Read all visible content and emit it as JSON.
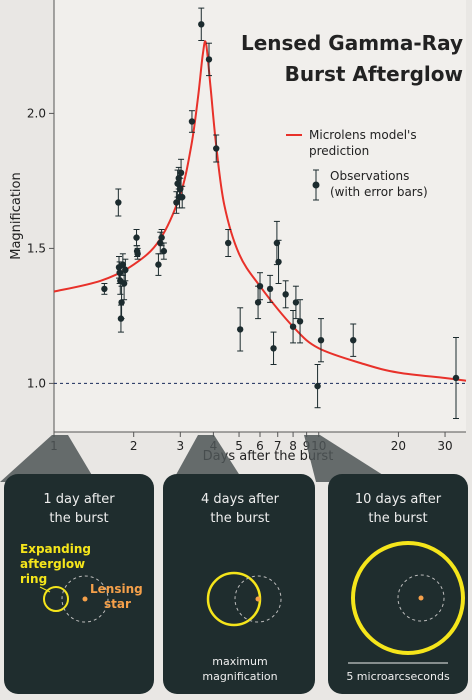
{
  "chart_data": {
    "type": "scatter",
    "title_line1": "Lensed Gamma-Ray",
    "title_line2": "Burst Afterglow",
    "xlabel": "Days after the burst",
    "ylabel": "Magnification",
    "x_scale": "log",
    "xlim": [
      1,
      36
    ],
    "ylim": [
      0.82,
      2.42
    ],
    "x_ticks": [
      1,
      2,
      3,
      4,
      5,
      6,
      7,
      8,
      9,
      10,
      20,
      30
    ],
    "x_tick_labels": [
      "1",
      "2",
      "3",
      "4",
      "5",
      "6",
      "7",
      "8",
      "9",
      "10",
      "20",
      "30"
    ],
    "y_ticks": [
      1.0,
      1.5,
      2.0
    ],
    "y_tick_labels": [
      "1.0",
      "1.5",
      "2.0"
    ],
    "baseline": 1.0,
    "colors": {
      "model": "#e8312a",
      "points": "#1c2b2e",
      "panel": "#1f2d2e",
      "ring": "#f5e51b",
      "star": "#f5a04a"
    },
    "legend": {
      "position": "top-right",
      "model_label_line1": "Microlens model's",
      "model_label_line2": "prediction",
      "obs_label_line1": "Observations",
      "obs_label_line2": "(with error bars)"
    },
    "series": [
      {
        "kind": "model-curve",
        "x": [
          1.0,
          1.5,
          2.0,
          2.5,
          3.0,
          3.3,
          3.5,
          3.65,
          3.75,
          3.9,
          4.1,
          4.4,
          5.0,
          6.0,
          8.0,
          10.0,
          15.0,
          20.0,
          30.0,
          36.0
        ],
        "y": [
          1.34,
          1.38,
          1.44,
          1.53,
          1.7,
          1.88,
          2.06,
          2.22,
          2.26,
          2.1,
          1.88,
          1.66,
          1.48,
          1.36,
          1.21,
          1.13,
          1.07,
          1.04,
          1.02,
          1.01
        ]
      },
      {
        "kind": "observations",
        "points": [
          {
            "x": 1.55,
            "y": 1.35,
            "err": 0.02
          },
          {
            "x": 1.75,
            "y": 1.67,
            "err": 0.05
          },
          {
            "x": 1.76,
            "y": 1.43,
            "err": 0.04
          },
          {
            "x": 1.77,
            "y": 1.41,
            "err": 0.04
          },
          {
            "x": 1.78,
            "y": 1.38,
            "err": 0.05
          },
          {
            "x": 1.79,
            "y": 1.24,
            "err": 0.05
          },
          {
            "x": 1.8,
            "y": 1.3,
            "err": 0.06
          },
          {
            "x": 1.82,
            "y": 1.44,
            "err": 0.04
          },
          {
            "x": 1.84,
            "y": 1.37,
            "err": 0.06
          },
          {
            "x": 1.86,
            "y": 1.42,
            "err": 0.04
          },
          {
            "x": 2.05,
            "y": 1.54,
            "err": 0.03
          },
          {
            "x": 2.06,
            "y": 1.49,
            "err": 0.02
          },
          {
            "x": 2.07,
            "y": 1.48,
            "err": 0.02
          },
          {
            "x": 2.48,
            "y": 1.44,
            "err": 0.04
          },
          {
            "x": 2.52,
            "y": 1.52,
            "err": 0.04
          },
          {
            "x": 2.55,
            "y": 1.54,
            "err": 0.03
          },
          {
            "x": 2.6,
            "y": 1.49,
            "err": 0.03
          },
          {
            "x": 2.9,
            "y": 1.67,
            "err": 0.04
          },
          {
            "x": 2.93,
            "y": 1.74,
            "err": 0.05
          },
          {
            "x": 2.96,
            "y": 1.76,
            "err": 0.04
          },
          {
            "x": 2.98,
            "y": 1.69,
            "err": 0.04
          },
          {
            "x": 3.0,
            "y": 1.72,
            "err": 0.04
          },
          {
            "x": 3.02,
            "y": 1.78,
            "err": 0.05
          },
          {
            "x": 3.05,
            "y": 1.69,
            "err": 0.04
          },
          {
            "x": 3.32,
            "y": 1.97,
            "err": 0.04
          },
          {
            "x": 3.6,
            "y": 2.33,
            "err": 0.06
          },
          {
            "x": 3.85,
            "y": 2.2,
            "err": 0.06
          },
          {
            "x": 4.1,
            "y": 1.87,
            "err": 0.05
          },
          {
            "x": 4.55,
            "y": 1.52,
            "err": 0.05
          },
          {
            "x": 5.05,
            "y": 1.2,
            "err": 0.08
          },
          {
            "x": 5.9,
            "y": 1.3,
            "err": 0.06
          },
          {
            "x": 6.0,
            "y": 1.36,
            "err": 0.05
          },
          {
            "x": 6.55,
            "y": 1.35,
            "err": 0.05
          },
          {
            "x": 6.75,
            "y": 1.13,
            "err": 0.06
          },
          {
            "x": 6.95,
            "y": 1.52,
            "err": 0.08
          },
          {
            "x": 7.05,
            "y": 1.45,
            "err": 0.08
          },
          {
            "x": 7.5,
            "y": 1.33,
            "err": 0.05
          },
          {
            "x": 8.0,
            "y": 1.21,
            "err": 0.06
          },
          {
            "x": 8.2,
            "y": 1.3,
            "err": 0.06
          },
          {
            "x": 8.5,
            "y": 1.23,
            "err": 0.08
          },
          {
            "x": 9.9,
            "y": 0.99,
            "err": 0.08
          },
          {
            "x": 10.2,
            "y": 1.16,
            "err": 0.08
          },
          {
            "x": 13.5,
            "y": 1.16,
            "err": 0.06
          },
          {
            "x": 33.0,
            "y": 1.02,
            "err": 0.15
          }
        ]
      }
    ]
  },
  "panels": [
    {
      "label_line1": "1 day after",
      "label_line2": "the burst",
      "ring_label_1": "Expanding",
      "ring_label_2": "afterglow",
      "ring_label_3": "ring",
      "star_label_1": "Lensing",
      "star_label_2": "star"
    },
    {
      "label_line1": "4 days after",
      "label_line2": "the burst",
      "caption_1": "maximum",
      "caption_2": "magnification"
    },
    {
      "label_line1": "10 days after",
      "label_line2": "the burst",
      "scale_label": "5 microarcseconds"
    }
  ]
}
